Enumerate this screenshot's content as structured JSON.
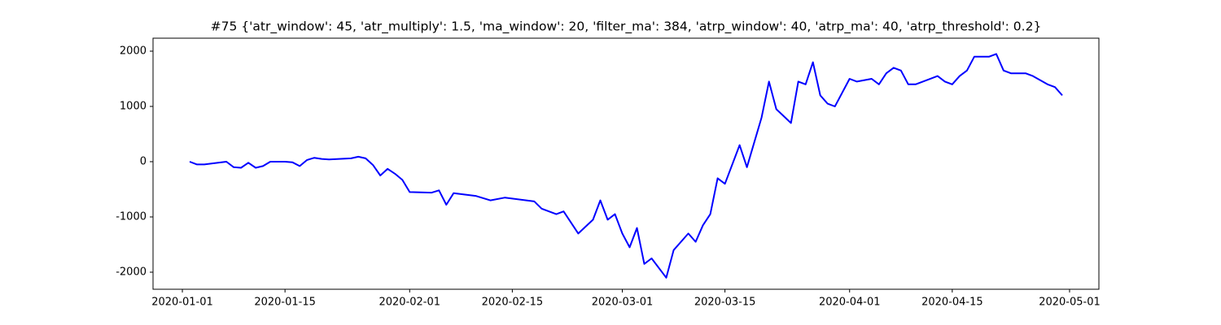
{
  "chart_data": {
    "type": "line",
    "title": "#75 {'atr_window': 45, 'atr_multiply': 1.5, 'ma_window': 20, 'filter_ma': 384, 'atrp_window': 40, 'atrp_ma': 40, 'atrp_threshold': 0.2}",
    "x": [
      "2020-01-02",
      "2020-01-03",
      "2020-01-04",
      "2020-01-07",
      "2020-01-08",
      "2020-01-09",
      "2020-01-10",
      "2020-01-11",
      "2020-01-12",
      "2020-01-13",
      "2020-01-15",
      "2020-01-16",
      "2020-01-17",
      "2020-01-18",
      "2020-01-19",
      "2020-01-20",
      "2020-01-21",
      "2020-01-24",
      "2020-01-25",
      "2020-01-26",
      "2020-01-27",
      "2020-01-28",
      "2020-01-29",
      "2020-01-30",
      "2020-01-31",
      "2020-02-01",
      "2020-02-04",
      "2020-02-05",
      "2020-02-06",
      "2020-02-07",
      "2020-02-10",
      "2020-02-12",
      "2020-02-14",
      "2020-02-18",
      "2020-02-19",
      "2020-02-21",
      "2020-02-22",
      "2020-02-24",
      "2020-02-26",
      "2020-02-27",
      "2020-02-28",
      "2020-02-29",
      "2020-03-01",
      "2020-03-02",
      "2020-03-03",
      "2020-03-04",
      "2020-03-05",
      "2020-03-07",
      "2020-03-08",
      "2020-03-10",
      "2020-03-11",
      "2020-03-12",
      "2020-03-13",
      "2020-03-14",
      "2020-03-15",
      "2020-03-17",
      "2020-03-18",
      "2020-03-19",
      "2020-03-20",
      "2020-03-21",
      "2020-03-22",
      "2020-03-24",
      "2020-03-25",
      "2020-03-26",
      "2020-03-27",
      "2020-03-28",
      "2020-03-29",
      "2020-03-30",
      "2020-04-01",
      "2020-04-02",
      "2020-04-04",
      "2020-04-05",
      "2020-04-06",
      "2020-04-07",
      "2020-04-08",
      "2020-04-09",
      "2020-04-10",
      "2020-04-13",
      "2020-04-14",
      "2020-04-15",
      "2020-04-16",
      "2020-04-17",
      "2020-04-18",
      "2020-04-20",
      "2020-04-21",
      "2020-04-22",
      "2020-04-23",
      "2020-04-25",
      "2020-04-26",
      "2020-04-28",
      "2020-04-29",
      "2020-04-30"
    ],
    "series": [
      {
        "color": "#0000ff",
        "values": [
          0,
          -50,
          -50,
          0,
          -100,
          -110,
          -20,
          -110,
          -80,
          0,
          0,
          -10,
          -80,
          30,
          70,
          50,
          40,
          60,
          90,
          60,
          -60,
          -250,
          -130,
          -220,
          -330,
          -550,
          -560,
          -520,
          -780,
          -570,
          -620,
          -700,
          -650,
          -720,
          -850,
          -950,
          -900,
          -1300,
          -1050,
          -700,
          -1050,
          -950,
          -1300,
          -1550,
          -1200,
          -1850,
          -1750,
          -2100,
          -1600,
          -1300,
          -1450,
          -1150,
          -950,
          -300,
          -400,
          300,
          -100,
          350,
          800,
          1450,
          950,
          700,
          1450,
          1400,
          1800,
          1200,
          1050,
          1000,
          1500,
          1450,
          1500,
          1400,
          1600,
          1700,
          1650,
          1400,
          1400,
          1550,
          1450,
          1400,
          1550,
          1650,
          1900,
          1900,
          1950,
          1650,
          1600,
          1600,
          1550,
          1400,
          1350,
          1200
        ]
      }
    ],
    "xlim": [
      "2019-12-28",
      "2020-05-05"
    ],
    "xticks": [
      "2020-01-01",
      "2020-01-15",
      "2020-02-01",
      "2020-02-15",
      "2020-03-01",
      "2020-03-15",
      "2020-04-01",
      "2020-04-15",
      "2020-05-01"
    ],
    "ylim": [
      -2309,
      2235
    ],
    "yticks": [
      -2000,
      -1000,
      0,
      1000,
      2000
    ]
  }
}
